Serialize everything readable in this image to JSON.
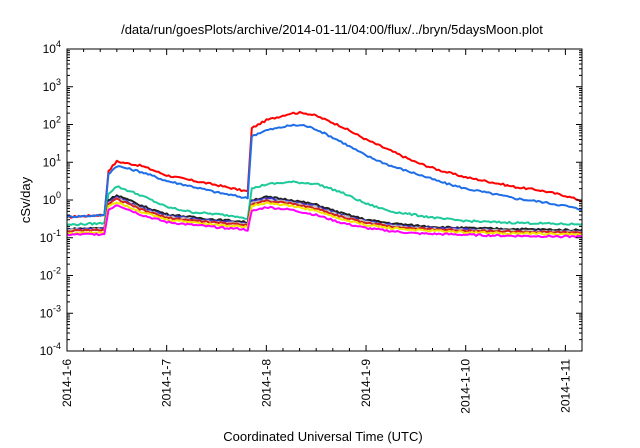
{
  "chart_data": {
    "type": "line",
    "title": "/data/run/goesPlots/archive/2014-01-11/04:00/flux/../bryn/5daysMoon.plot",
    "xlabel": "Coordinated Universal Time (UTC)",
    "ylabel": "cSv/day",
    "y_scale": "log",
    "ylim": [
      0.0001,
      10000
    ],
    "y_ticks": [
      {
        "value": 0.0001,
        "base": "10",
        "exp": "-4"
      },
      {
        "value": 0.001,
        "base": "10",
        "exp": "-3"
      },
      {
        "value": 0.01,
        "base": "10",
        "exp": "-2"
      },
      {
        "value": 0.1,
        "base": "10",
        "exp": "-1"
      },
      {
        "value": 1,
        "base": "10",
        "exp": "0"
      },
      {
        "value": 10,
        "base": "10",
        "exp": "1"
      },
      {
        "value": 100,
        "base": "10",
        "exp": "2"
      },
      {
        "value": 1000,
        "base": "10",
        "exp": "3"
      },
      {
        "value": 10000,
        "base": "10",
        "exp": "4"
      }
    ],
    "x_axis_type": "date",
    "xlim": [
      "2014-01-06T00:00",
      "2014-01-11T04:00"
    ],
    "x_ticks": [
      "2014-1-6",
      "2014-1-7",
      "2014-1-8",
      "2014-1-9",
      "2014-1-10",
      "2014-1-11"
    ],
    "grid": false,
    "series": [
      {
        "color": "#ff0000",
        "points": [
          [
            "2014-01-06T00:00",
            0.35
          ],
          [
            "2014-01-06T08:00",
            0.4
          ],
          [
            "2014-01-06T09:00",
            0.4
          ],
          [
            "2014-01-06T10:00",
            6
          ],
          [
            "2014-01-06T12:00",
            10.5
          ],
          [
            "2014-01-06T18:00",
            8
          ],
          [
            "2014-01-07T00:00",
            4.5
          ],
          [
            "2014-01-07T06:00",
            3.3
          ],
          [
            "2014-01-07T12:00",
            2.5
          ],
          [
            "2014-01-07T18:00",
            1.8
          ],
          [
            "2014-01-07T19:30",
            1.7
          ],
          [
            "2014-01-07T20:30",
            80
          ],
          [
            "2014-01-08T00:00",
            130
          ],
          [
            "2014-01-08T06:00",
            200
          ],
          [
            "2014-01-08T09:00",
            205
          ],
          [
            "2014-01-08T12:00",
            170
          ],
          [
            "2014-01-08T18:00",
            90
          ],
          [
            "2014-01-09T00:00",
            40
          ],
          [
            "2014-01-09T06:00",
            20
          ],
          [
            "2014-01-09T12:00",
            10
          ],
          [
            "2014-01-09T18:00",
            6
          ],
          [
            "2014-01-10T00:00",
            4
          ],
          [
            "2014-01-10T06:00",
            3
          ],
          [
            "2014-01-10T12:00",
            2.2
          ],
          [
            "2014-01-10T18:00",
            1.8
          ],
          [
            "2014-01-11T00:00",
            1.3
          ],
          [
            "2014-01-11T04:00",
            0.95
          ]
        ]
      },
      {
        "color": "#1f6ee8",
        "points": [
          [
            "2014-01-06T00:00",
            0.36
          ],
          [
            "2014-01-06T08:00",
            0.39
          ],
          [
            "2014-01-06T09:00",
            0.4
          ],
          [
            "2014-01-06T10:00",
            5
          ],
          [
            "2014-01-06T12:00",
            8
          ],
          [
            "2014-01-06T18:00",
            5.5
          ],
          [
            "2014-01-07T00:00",
            3.2
          ],
          [
            "2014-01-07T06:00",
            2.3
          ],
          [
            "2014-01-07T12:00",
            1.6
          ],
          [
            "2014-01-07T18:00",
            1.2
          ],
          [
            "2014-01-07T19:30",
            1.1
          ],
          [
            "2014-01-07T20:30",
            50
          ],
          [
            "2014-01-08T00:00",
            70
          ],
          [
            "2014-01-08T06:00",
            95
          ],
          [
            "2014-01-08T09:00",
            95
          ],
          [
            "2014-01-08T12:00",
            75
          ],
          [
            "2014-01-08T18:00",
            35
          ],
          [
            "2014-01-09T00:00",
            15
          ],
          [
            "2014-01-09T06:00",
            8
          ],
          [
            "2014-01-09T12:00",
            5
          ],
          [
            "2014-01-09T18:00",
            3
          ],
          [
            "2014-01-10T00:00",
            2
          ],
          [
            "2014-01-10T06:00",
            1.5
          ],
          [
            "2014-01-10T12:00",
            1.1
          ],
          [
            "2014-01-10T18:00",
            0.9
          ],
          [
            "2014-01-11T00:00",
            0.7
          ],
          [
            "2014-01-11T04:00",
            0.55
          ]
        ]
      },
      {
        "color": "#1ec99a",
        "points": [
          [
            "2014-01-06T00:00",
            0.22
          ],
          [
            "2014-01-06T08:00",
            0.24
          ],
          [
            "2014-01-06T09:00",
            0.25
          ],
          [
            "2014-01-06T10:00",
            1.5
          ],
          [
            "2014-01-06T12:00",
            2.3
          ],
          [
            "2014-01-06T18:00",
            1.3
          ],
          [
            "2014-01-07T00:00",
            0.65
          ],
          [
            "2014-01-07T06:00",
            0.48
          ],
          [
            "2014-01-07T12:00",
            0.42
          ],
          [
            "2014-01-07T18:00",
            0.36
          ],
          [
            "2014-01-07T19:30",
            0.32
          ],
          [
            "2014-01-07T20:30",
            2.0
          ],
          [
            "2014-01-08T00:00",
            2.6
          ],
          [
            "2014-01-08T06:00",
            3.0
          ],
          [
            "2014-01-08T12:00",
            2.7
          ],
          [
            "2014-01-08T18:00",
            1.6
          ],
          [
            "2014-01-09T00:00",
            0.8
          ],
          [
            "2014-01-09T06:00",
            0.5
          ],
          [
            "2014-01-09T12:00",
            0.4
          ],
          [
            "2014-01-09T18:00",
            0.32
          ],
          [
            "2014-01-10T00:00",
            0.28
          ],
          [
            "2014-01-10T06:00",
            0.26
          ],
          [
            "2014-01-10T12:00",
            0.25
          ],
          [
            "2014-01-10T18:00",
            0.24
          ],
          [
            "2014-01-11T00:00",
            0.23
          ],
          [
            "2014-01-11T04:00",
            0.23
          ]
        ]
      },
      {
        "color": "#202020",
        "points": [
          [
            "2014-01-06T00:00",
            0.17
          ],
          [
            "2014-01-06T08:00",
            0.18
          ],
          [
            "2014-01-06T09:00",
            0.18
          ],
          [
            "2014-01-06T10:00",
            1.0
          ],
          [
            "2014-01-06T12:00",
            1.35
          ],
          [
            "2014-01-06T18:00",
            0.7
          ],
          [
            "2014-01-07T00:00",
            0.42
          ],
          [
            "2014-01-07T06:00",
            0.35
          ],
          [
            "2014-01-07T12:00",
            0.3
          ],
          [
            "2014-01-07T18:00",
            0.27
          ],
          [
            "2014-01-07T19:30",
            0.25
          ],
          [
            "2014-01-07T20:30",
            1.0
          ],
          [
            "2014-01-08T00:00",
            1.2
          ],
          [
            "2014-01-08T06:00",
            1.0
          ],
          [
            "2014-01-08T12:00",
            0.75
          ],
          [
            "2014-01-08T18:00",
            0.45
          ],
          [
            "2014-01-09T00:00",
            0.3
          ],
          [
            "2014-01-09T06:00",
            0.24
          ],
          [
            "2014-01-09T12:00",
            0.21
          ],
          [
            "2014-01-09T18:00",
            0.19
          ],
          [
            "2014-01-10T00:00",
            0.18
          ],
          [
            "2014-01-10T06:00",
            0.175
          ],
          [
            "2014-01-10T12:00",
            0.17
          ],
          [
            "2014-01-10T18:00",
            0.165
          ],
          [
            "2014-01-11T00:00",
            0.16
          ],
          [
            "2014-01-11T04:00",
            0.16
          ]
        ]
      },
      {
        "color": "#3c32c8",
        "points": [
          [
            "2014-01-06T00:00",
            0.16
          ],
          [
            "2014-01-06T08:00",
            0.17
          ],
          [
            "2014-01-06T09:00",
            0.17
          ],
          [
            "2014-01-06T10:00",
            0.9
          ],
          [
            "2014-01-06T12:00",
            1.2
          ],
          [
            "2014-01-06T18:00",
            0.62
          ],
          [
            "2014-01-07T00:00",
            0.38
          ],
          [
            "2014-01-07T06:00",
            0.32
          ],
          [
            "2014-01-07T12:00",
            0.28
          ],
          [
            "2014-01-07T18:00",
            0.25
          ],
          [
            "2014-01-07T19:30",
            0.23
          ],
          [
            "2014-01-07T20:30",
            0.9
          ],
          [
            "2014-01-08T00:00",
            1.1
          ],
          [
            "2014-01-08T06:00",
            0.9
          ],
          [
            "2014-01-08T12:00",
            0.68
          ],
          [
            "2014-01-08T18:00",
            0.4
          ],
          [
            "2014-01-09T00:00",
            0.27
          ],
          [
            "2014-01-09T06:00",
            0.22
          ],
          [
            "2014-01-09T12:00",
            0.19
          ],
          [
            "2014-01-09T18:00",
            0.175
          ],
          [
            "2014-01-10T00:00",
            0.165
          ],
          [
            "2014-01-10T06:00",
            0.16
          ],
          [
            "2014-01-10T12:00",
            0.155
          ],
          [
            "2014-01-10T18:00",
            0.15
          ],
          [
            "2014-01-11T00:00",
            0.148
          ],
          [
            "2014-01-11T04:00",
            0.148
          ]
        ]
      },
      {
        "color": "#c0c0c0",
        "points": [
          [
            "2014-01-06T00:00",
            0.16
          ],
          [
            "2014-01-06T08:00",
            0.165
          ],
          [
            "2014-01-06T09:00",
            0.165
          ],
          [
            "2014-01-06T10:00",
            0.85
          ],
          [
            "2014-01-06T12:00",
            1.1
          ],
          [
            "2014-01-06T18:00",
            0.58
          ],
          [
            "2014-01-07T00:00",
            0.36
          ],
          [
            "2014-01-07T06:00",
            0.3
          ],
          [
            "2014-01-07T12:00",
            0.26
          ],
          [
            "2014-01-07T18:00",
            0.24
          ],
          [
            "2014-01-07T19:30",
            0.22
          ],
          [
            "2014-01-07T20:30",
            0.85
          ],
          [
            "2014-01-08T00:00",
            1.0
          ],
          [
            "2014-01-08T06:00",
            0.85
          ],
          [
            "2014-01-08T12:00",
            0.64
          ],
          [
            "2014-01-08T18:00",
            0.38
          ],
          [
            "2014-01-09T00:00",
            0.26
          ],
          [
            "2014-01-09T06:00",
            0.21
          ],
          [
            "2014-01-09T12:00",
            0.18
          ],
          [
            "2014-01-09T18:00",
            0.17
          ],
          [
            "2014-01-10T00:00",
            0.16
          ],
          [
            "2014-01-10T06:00",
            0.155
          ],
          [
            "2014-01-10T12:00",
            0.15
          ],
          [
            "2014-01-10T18:00",
            0.145
          ],
          [
            "2014-01-11T00:00",
            0.143
          ],
          [
            "2014-01-11T04:00",
            0.143
          ]
        ]
      },
      {
        "color": "#d42020",
        "points": [
          [
            "2014-01-06T00:00",
            0.15
          ],
          [
            "2014-01-06T08:00",
            0.16
          ],
          [
            "2014-01-06T09:00",
            0.16
          ],
          [
            "2014-01-06T10:00",
            0.8
          ],
          [
            "2014-01-06T12:00",
            1.05
          ],
          [
            "2014-01-06T18:00",
            0.55
          ],
          [
            "2014-01-07T00:00",
            0.34
          ],
          [
            "2014-01-07T06:00",
            0.29
          ],
          [
            "2014-01-07T12:00",
            0.25
          ],
          [
            "2014-01-07T18:00",
            0.23
          ],
          [
            "2014-01-07T19:30",
            0.21
          ],
          [
            "2014-01-07T20:30",
            0.8
          ],
          [
            "2014-01-08T00:00",
            0.95
          ],
          [
            "2014-01-08T06:00",
            0.8
          ],
          [
            "2014-01-08T12:00",
            0.6
          ],
          [
            "2014-01-08T18:00",
            0.36
          ],
          [
            "2014-01-09T00:00",
            0.25
          ],
          [
            "2014-01-09T06:00",
            0.2
          ],
          [
            "2014-01-09T12:00",
            0.175
          ],
          [
            "2014-01-09T18:00",
            0.165
          ],
          [
            "2014-01-10T00:00",
            0.155
          ],
          [
            "2014-01-10T06:00",
            0.15
          ],
          [
            "2014-01-10T12:00",
            0.145
          ],
          [
            "2014-01-10T18:00",
            0.14
          ],
          [
            "2014-01-11T00:00",
            0.138
          ],
          [
            "2014-01-11T04:00",
            0.138
          ]
        ]
      },
      {
        "color": "#f2e600",
        "points": [
          [
            "2014-01-06T00:00",
            0.13
          ],
          [
            "2014-01-06T08:00",
            0.14
          ],
          [
            "2014-01-06T09:00",
            0.14
          ],
          [
            "2014-01-06T10:00",
            0.7
          ],
          [
            "2014-01-06T12:00",
            0.9
          ],
          [
            "2014-01-06T18:00",
            0.48
          ],
          [
            "2014-01-07T00:00",
            0.3
          ],
          [
            "2014-01-07T06:00",
            0.26
          ],
          [
            "2014-01-07T12:00",
            0.22
          ],
          [
            "2014-01-07T18:00",
            0.2
          ],
          [
            "2014-01-07T19:30",
            0.19
          ],
          [
            "2014-01-07T20:30",
            0.7
          ],
          [
            "2014-01-08T00:00",
            0.85
          ],
          [
            "2014-01-08T06:00",
            0.7
          ],
          [
            "2014-01-08T12:00",
            0.52
          ],
          [
            "2014-01-08T18:00",
            0.31
          ],
          [
            "2014-01-09T00:00",
            0.22
          ],
          [
            "2014-01-09T06:00",
            0.18
          ],
          [
            "2014-01-09T12:00",
            0.16
          ],
          [
            "2014-01-09T18:00",
            0.15
          ],
          [
            "2014-01-10T00:00",
            0.14
          ],
          [
            "2014-01-10T06:00",
            0.135
          ],
          [
            "2014-01-10T12:00",
            0.13
          ],
          [
            "2014-01-10T18:00",
            0.128
          ],
          [
            "2014-01-11T00:00",
            0.125
          ],
          [
            "2014-01-11T04:00",
            0.125
          ]
        ]
      },
      {
        "color": "#ff00ff",
        "points": [
          [
            "2014-01-06T00:00",
            0.12
          ],
          [
            "2014-01-06T08:00",
            0.125
          ],
          [
            "2014-01-06T09:00",
            0.125
          ],
          [
            "2014-01-06T10:00",
            0.55
          ],
          [
            "2014-01-06T12:00",
            0.75
          ],
          [
            "2014-01-06T18:00",
            0.4
          ],
          [
            "2014-01-07T00:00",
            0.26
          ],
          [
            "2014-01-07T06:00",
            0.22
          ],
          [
            "2014-01-07T12:00",
            0.19
          ],
          [
            "2014-01-07T18:00",
            0.17
          ],
          [
            "2014-01-07T19:30",
            0.16
          ],
          [
            "2014-01-07T20:30",
            0.5
          ],
          [
            "2014-01-08T00:00",
            0.65
          ],
          [
            "2014-01-08T06:00",
            0.55
          ],
          [
            "2014-01-08T12:00",
            0.4
          ],
          [
            "2014-01-08T18:00",
            0.25
          ],
          [
            "2014-01-09T00:00",
            0.18
          ],
          [
            "2014-01-09T06:00",
            0.15
          ],
          [
            "2014-01-09T12:00",
            0.13
          ],
          [
            "2014-01-09T18:00",
            0.125
          ],
          [
            "2014-01-10T00:00",
            0.12
          ],
          [
            "2014-01-10T06:00",
            0.115
          ],
          [
            "2014-01-10T12:00",
            0.112
          ],
          [
            "2014-01-10T18:00",
            0.11
          ],
          [
            "2014-01-11T00:00",
            0.108
          ],
          [
            "2014-01-11T04:00",
            0.108
          ]
        ]
      }
    ]
  }
}
